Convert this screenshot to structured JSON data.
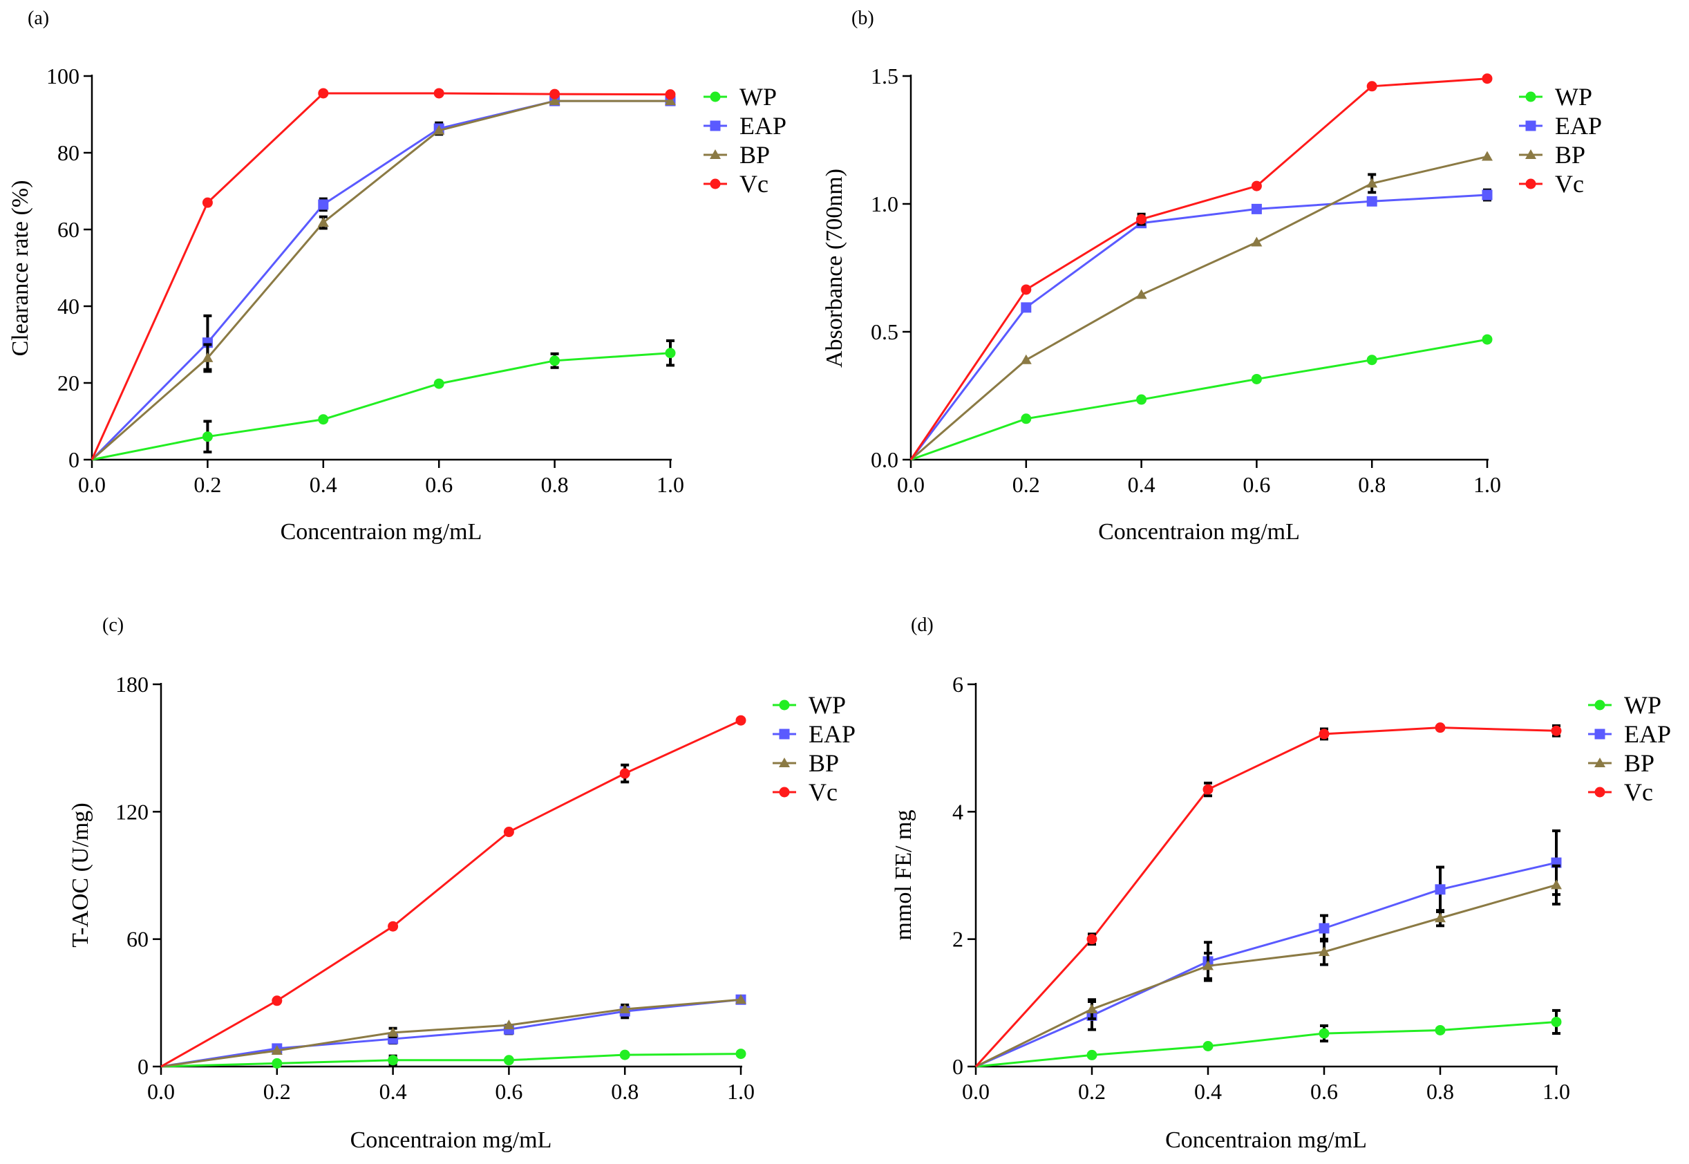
{
  "colors": {
    "WP": "#22ee22",
    "EAP": "#5a5aff",
    "BP": "#8b7a44",
    "Vc": "#ff1a1a",
    "axis": "#000000",
    "error": "#000000"
  },
  "chart_data": [
    {
      "panel_label": "(a)",
      "type": "line",
      "ylabel": "Clearance rate (%)",
      "xlabel": "Concentraion mg/mL",
      "xlim": [
        0,
        1
      ],
      "ylim": [
        0,
        100
      ],
      "xticks": [
        0,
        0.2,
        0.4,
        0.6,
        0.8,
        1.0
      ],
      "xtick_labels": [
        "0.0",
        "0.2",
        "0.4",
        "0.6",
        "0.8",
        "1.0"
      ],
      "yticks": [
        0,
        20,
        40,
        60,
        80,
        100
      ],
      "ytick_labels": [
        "0",
        "20",
        "40",
        "60",
        "80",
        "100"
      ],
      "x": [
        0,
        0.2,
        0.4,
        0.6,
        0.8,
        1.0
      ],
      "series": [
        {
          "name": "WP",
          "marker": "circle",
          "values": [
            0,
            6,
            10.5,
            19.8,
            25.8,
            27.8
          ],
          "errors": [
            0,
            4,
            0,
            0,
            1.8,
            3.2
          ]
        },
        {
          "name": "EAP",
          "marker": "square",
          "values": [
            0,
            30.5,
            66.5,
            86.3,
            93.5,
            93.5
          ],
          "errors": [
            0,
            7,
            1.5,
            1.5,
            0,
            0
          ]
        },
        {
          "name": "BP",
          "marker": "triangle",
          "values": [
            0,
            26.5,
            61.8,
            85.8,
            93.5,
            93.5
          ],
          "errors": [
            0,
            3.5,
            1.5,
            0,
            0,
            0
          ]
        },
        {
          "name": "Vc",
          "marker": "circle",
          "values": [
            0,
            67,
            95.5,
            95.5,
            95.3,
            95.2
          ],
          "errors": [
            0,
            0,
            0,
            0,
            0,
            0
          ]
        }
      ]
    },
    {
      "panel_label": "(b)",
      "type": "line",
      "ylabel": "Absorbance (700nm)",
      "xlabel": "Concentraion mg/mL",
      "xlim": [
        0,
        1
      ],
      "ylim": [
        0,
        1.5
      ],
      "xticks": [
        0,
        0.2,
        0.4,
        0.6,
        0.8,
        1.0
      ],
      "xtick_labels": [
        "0.0",
        "0.2",
        "0.4",
        "0.6",
        "0.8",
        "1.0"
      ],
      "yticks": [
        0,
        0.5,
        1.0,
        1.5
      ],
      "ytick_labels": [
        "0.0",
        "0.5",
        "1.0",
        "1.5"
      ],
      "x": [
        0,
        0.2,
        0.4,
        0.6,
        0.8,
        1.0
      ],
      "series": [
        {
          "name": "WP",
          "marker": "circle",
          "values": [
            0,
            0.16,
            0.235,
            0.315,
            0.39,
            0.47
          ],
          "errors": [
            0,
            0,
            0,
            0,
            0,
            0
          ]
        },
        {
          "name": "EAP",
          "marker": "square",
          "values": [
            0,
            0.595,
            0.925,
            0.98,
            1.01,
            1.035
          ],
          "errors": [
            0,
            0,
            0,
            0,
            0,
            0.02
          ]
        },
        {
          "name": "BP",
          "marker": "triangle",
          "values": [
            0,
            0.39,
            0.645,
            0.85,
            1.08,
            1.185
          ],
          "errors": [
            0,
            0,
            0,
            0,
            0.035,
            0
          ]
        },
        {
          "name": "Vc",
          "marker": "circle",
          "values": [
            0,
            0.665,
            0.94,
            1.07,
            1.46,
            1.49
          ],
          "errors": [
            0,
            0,
            0.02,
            0,
            0,
            0
          ]
        }
      ]
    },
    {
      "panel_label": "(c)",
      "type": "line",
      "ylabel": "T-AOC (U/mg)",
      "xlabel": "Concentraion mg/mL",
      "xlim": [
        0,
        1
      ],
      "ylim": [
        0,
        180
      ],
      "xticks": [
        0,
        0.2,
        0.4,
        0.6,
        0.8,
        1.0
      ],
      "xtick_labels": [
        "0.0",
        "0.2",
        "0.4",
        "0.6",
        "0.8",
        "1.0"
      ],
      "yticks": [
        0,
        60,
        120,
        180
      ],
      "ytick_labels": [
        "0",
        "60",
        "120",
        "180"
      ],
      "x": [
        0,
        0.2,
        0.4,
        0.6,
        0.8,
        1.0
      ],
      "series": [
        {
          "name": "WP",
          "marker": "circle",
          "values": [
            0,
            1.5,
            3,
            3,
            5.5,
            6
          ],
          "errors": [
            0,
            0,
            2,
            0,
            0,
            0
          ]
        },
        {
          "name": "EAP",
          "marker": "square",
          "values": [
            0,
            8.5,
            13,
            17.5,
            26,
            31.5
          ],
          "errors": [
            0,
            0,
            2,
            2,
            3,
            0
          ]
        },
        {
          "name": "BP",
          "marker": "triangle",
          "values": [
            0,
            7.5,
            16,
            19.5,
            27,
            31.5
          ],
          "errors": [
            0,
            0,
            2,
            0,
            0,
            0
          ]
        },
        {
          "name": "Vc",
          "marker": "circle",
          "values": [
            0,
            31,
            66,
            110.5,
            138,
            163
          ],
          "errors": [
            0,
            0,
            0,
            0,
            4,
            0
          ]
        }
      ]
    },
    {
      "panel_label": "(d)",
      "type": "line",
      "ylabel": "mmol FE/ mg",
      "xlabel": "Concentraion mg/mL",
      "xlim": [
        0,
        1
      ],
      "ylim": [
        0,
        6
      ],
      "xticks": [
        0,
        0.2,
        0.4,
        0.6,
        0.8,
        1.0
      ],
      "xtick_labels": [
        "0.0",
        "0.2",
        "0.4",
        "0.6",
        "0.8",
        "1.0"
      ],
      "yticks": [
        0,
        2,
        4,
        6
      ],
      "ytick_labels": [
        "0",
        "2",
        "4",
        "6"
      ],
      "x": [
        0,
        0.2,
        0.4,
        0.6,
        0.8,
        1.0
      ],
      "series": [
        {
          "name": "WP",
          "marker": "circle",
          "values": [
            0,
            0.18,
            0.32,
            0.52,
            0.57,
            0.7
          ],
          "errors": [
            0,
            0,
            0,
            0.12,
            0,
            0.18
          ]
        },
        {
          "name": "EAP",
          "marker": "square",
          "values": [
            0,
            0.8,
            1.65,
            2.17,
            2.78,
            3.2
          ],
          "errors": [
            0,
            0.22,
            0.3,
            0.2,
            0.35,
            0.5
          ]
        },
        {
          "name": "BP",
          "marker": "triangle",
          "values": [
            0,
            0.9,
            1.58,
            1.8,
            2.33,
            2.85
          ],
          "errors": [
            0,
            0.15,
            0.2,
            0.2,
            0.12,
            0.3
          ]
        },
        {
          "name": "Vc",
          "marker": "circle",
          "values": [
            0,
            2.0,
            4.35,
            5.22,
            5.32,
            5.27
          ],
          "errors": [
            0,
            0.08,
            0.1,
            0.08,
            0,
            0.08
          ]
        }
      ]
    }
  ]
}
